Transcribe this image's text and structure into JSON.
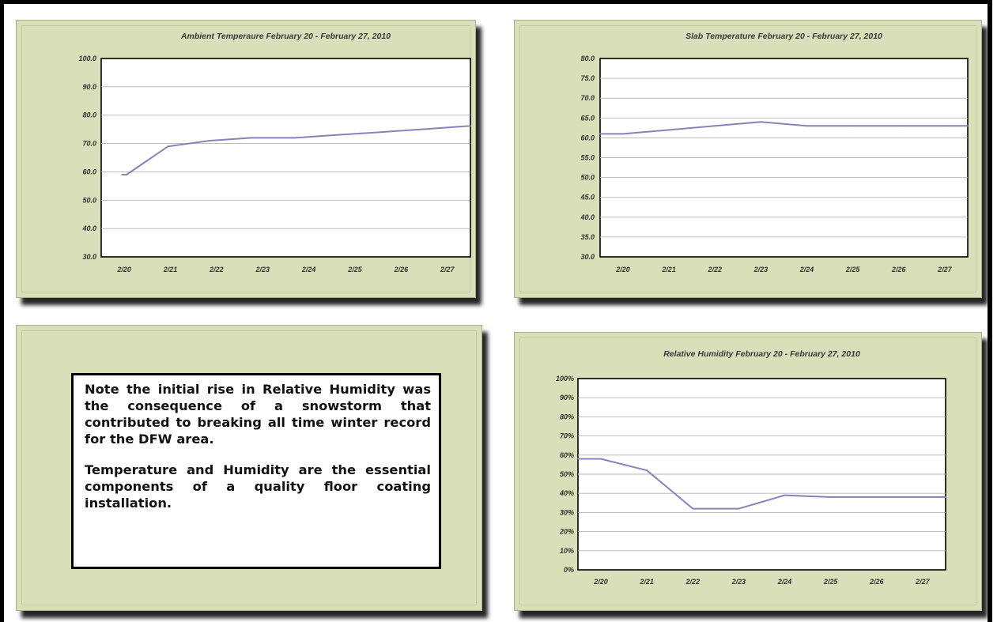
{
  "chart_data": [
    {
      "type": "line",
      "title": "Ambient Temperaure February 20 - February 27, 2010",
      "categories": [
        "2/20",
        "2/21",
        "2/22",
        "2/23",
        "2/24",
        "2/25",
        "2/26",
        "2/27"
      ],
      "x": [
        -0.05,
        0.05,
        0.95,
        1.85,
        2.75,
        3.7,
        4.6,
        5.55,
        6.45,
        7.5
      ],
      "values": [
        59,
        59,
        69,
        71,
        72,
        72,
        73,
        74,
        75,
        76.2
      ],
      "ylim": [
        30,
        100
      ],
      "yticks": [
        "30.0",
        "40.0",
        "50.0",
        "60.0",
        "70.0",
        "80.0",
        "90.0",
        "100.0"
      ],
      "ystep": 10,
      "grid": true,
      "line_color": "#8a82b8"
    },
    {
      "type": "line",
      "title": "Slab Temperature February 20 - February 27, 2010",
      "categories": [
        "2/20",
        "2/21",
        "2/22",
        "2/23",
        "2/24",
        "2/25",
        "2/26",
        "2/27"
      ],
      "x": [
        -0.5,
        0.0,
        1.0,
        2.0,
        3.0,
        4.0,
        5.0,
        6.0,
        7.0,
        7.5
      ],
      "values": [
        61,
        61,
        62,
        63,
        64,
        63,
        63,
        63,
        63,
        63
      ],
      "ylim": [
        30,
        80
      ],
      "yticks": [
        "30.0",
        "35.0",
        "40.0",
        "45.0",
        "50.0",
        "55.0",
        "60.0",
        "65.0",
        "70.0",
        "75.0",
        "80.0"
      ],
      "ystep": 5,
      "grid": true,
      "line_color": "#8a82b8"
    },
    {
      "type": "line",
      "title": "Relative Humidity February 20 - February 27, 2010",
      "categories": [
        "2/20",
        "2/21",
        "2/22",
        "2/23",
        "2/24",
        "2/25",
        "2/26",
        "2/27"
      ],
      "x": [
        -0.5,
        0.0,
        1.0,
        2.0,
        3.0,
        4.0,
        5.0,
        6.0,
        7.0,
        7.5
      ],
      "values": [
        58,
        58,
        52,
        32,
        32,
        39,
        38,
        38,
        38,
        38
      ],
      "ylim": [
        0,
        100
      ],
      "yticks": [
        "0%",
        "10%",
        "20%",
        "30%",
        "40%",
        "50%",
        "60%",
        "70%",
        "80%",
        "90%",
        "100%"
      ],
      "ystep": 10,
      "grid": true,
      "line_color": "#8a82b8"
    }
  ],
  "note": {
    "line1_pre": "Note the initial rise in ",
    "line1_bold": "Relative Humidity",
    "line1_post": " was the consequence of a snowstorm that contributed to breaking all time winter record for the DFW area.",
    "paragraph2": "Temperature and Humidity are the essential components of a quality floor coating installation."
  }
}
